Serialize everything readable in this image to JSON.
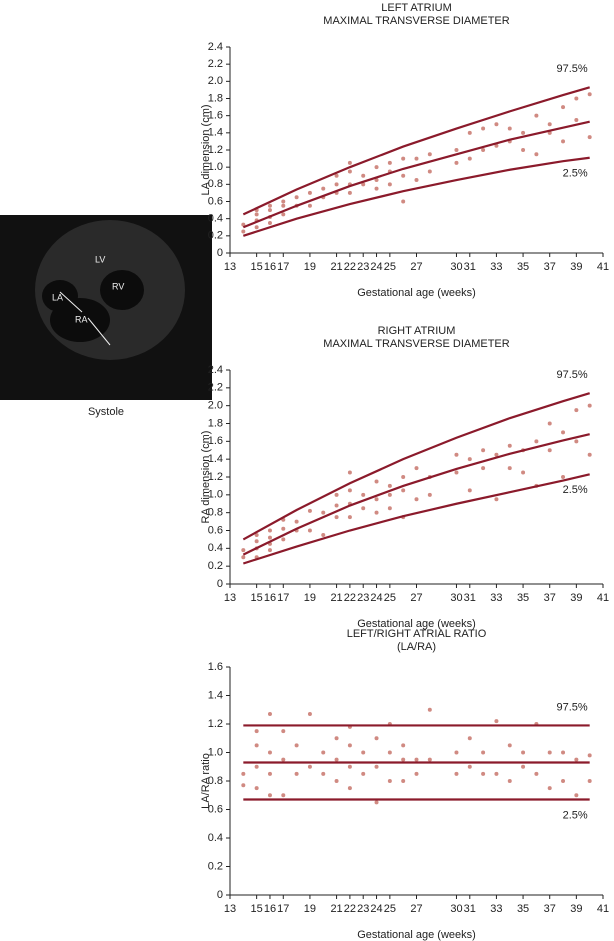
{
  "image": {
    "labels": [
      "LV",
      "RV",
      "LA",
      "RA"
    ],
    "caption": "Systole"
  },
  "chart_data": [
    {
      "type": "scatter",
      "title": "LEFT ATRIUM",
      "subtitle": "MAXIMAL TRANSVERSE DIAMETER",
      "x_label": "Gestational age (weeks)",
      "y_label": "LA dimension (cm)",
      "xlim": [
        13,
        41
      ],
      "xticks": [
        13,
        15,
        16,
        17,
        19,
        21,
        22,
        23,
        24,
        25,
        27,
        30,
        31,
        33,
        35,
        37,
        39,
        41
      ],
      "ylim": [
        0,
        2.4
      ],
      "yticks": [
        0,
        0.2,
        0.4,
        0.6,
        0.8,
        {
          "value": 1,
          "label": "1.0"
        },
        1.2,
        1.4,
        1.6,
        1.8,
        {
          "value": 2,
          "label": "2.0"
        },
        2.2,
        2.4
      ],
      "series": [
        {
          "type": "scatter",
          "color": "#d08a82",
          "x": [
            14,
            14,
            15,
            15,
            15,
            15,
            16,
            16,
            16,
            16,
            17,
            17,
            17,
            18,
            18,
            19,
            19,
            20,
            20,
            21,
            21,
            21,
            22,
            22,
            22,
            22,
            23,
            23,
            24,
            24,
            24,
            25,
            25,
            25,
            26,
            26,
            26,
            27,
            27,
            28,
            28,
            30,
            30,
            31,
            31,
            32,
            32,
            33,
            33,
            34,
            34,
            35,
            35,
            36,
            36,
            37,
            37,
            38,
            38,
            39,
            39,
            40,
            40
          ],
          "values": [
            0.25,
            0.33,
            0.3,
            0.38,
            0.45,
            0.5,
            0.35,
            0.42,
            0.5,
            0.55,
            0.45,
            0.55,
            0.6,
            0.55,
            0.65,
            0.55,
            0.7,
            0.65,
            0.75,
            0.7,
            0.8,
            0.9,
            0.7,
            0.8,
            0.95,
            1.05,
            0.8,
            0.9,
            0.75,
            0.85,
            1.0,
            0.8,
            0.95,
            1.05,
            0.6,
            0.9,
            1.1,
            0.85,
            1.1,
            0.95,
            1.15,
            1.05,
            1.2,
            1.1,
            1.4,
            1.2,
            1.45,
            1.25,
            1.5,
            1.3,
            1.45,
            1.2,
            1.4,
            1.15,
            1.6,
            1.4,
            1.5,
            1.3,
            1.7,
            1.55,
            1.8,
            1.35,
            1.85
          ]
        },
        {
          "type": "line",
          "name": "97.5%",
          "color": "#8b1a2b",
          "x": [
            14,
            18,
            22,
            26,
            30,
            34,
            38,
            40
          ],
          "values": [
            0.45,
            0.74,
            1.0,
            1.24,
            1.45,
            1.65,
            1.84,
            1.93
          ]
        },
        {
          "type": "line",
          "color": "#8b1a2b",
          "x": [
            14,
            18,
            22,
            26,
            30,
            34,
            38,
            40
          ],
          "values": [
            0.3,
            0.55,
            0.78,
            0.98,
            1.15,
            1.32,
            1.46,
            1.53
          ]
        },
        {
          "type": "line",
          "name": "2.5%",
          "color": "#8b1a2b",
          "x": [
            14,
            18,
            22,
            26,
            30,
            34,
            38,
            40
          ],
          "values": [
            0.2,
            0.4,
            0.57,
            0.72,
            0.85,
            0.97,
            1.07,
            1.11
          ]
        }
      ]
    },
    {
      "type": "scatter",
      "title": "RIGHT ATRIUM",
      "subtitle": "MAXIMAL TRANSVERSE DIAMETER",
      "x_label": "Gestational age (weeks)",
      "y_label": "RA dimension (cm)",
      "xlim": [
        13,
        41
      ],
      "xticks": [
        13,
        15,
        16,
        17,
        19,
        21,
        22,
        23,
        24,
        25,
        27,
        30,
        31,
        33,
        35,
        37,
        39,
        41
      ],
      "ylim": [
        0,
        2.4
      ],
      "yticks": [
        0,
        0.2,
        0.4,
        0.6,
        0.8,
        {
          "value": 1,
          "label": "1.0"
        },
        1.2,
        1.4,
        1.6,
        1.8,
        {
          "value": 2,
          "label": "2.0"
        },
        2.2,
        2.4
      ],
      "series": [
        {
          "type": "scatter",
          "color": "#d08a82",
          "x": [
            14,
            14,
            15,
            15,
            15,
            15,
            16,
            16,
            16,
            16,
            17,
            17,
            17,
            18,
            18,
            19,
            19,
            20,
            20,
            21,
            21,
            21,
            22,
            22,
            22,
            22,
            23,
            23,
            24,
            24,
            24,
            25,
            25,
            25,
            26,
            26,
            26,
            27,
            27,
            28,
            28,
            30,
            30,
            31,
            31,
            32,
            32,
            33,
            33,
            34,
            34,
            35,
            35,
            36,
            36,
            37,
            37,
            38,
            38,
            39,
            39,
            40,
            40
          ],
          "values": [
            0.3,
            0.38,
            0.3,
            0.4,
            0.48,
            0.55,
            0.38,
            0.45,
            0.52,
            0.6,
            0.5,
            0.62,
            0.72,
            0.6,
            0.7,
            0.6,
            0.82,
            0.55,
            0.8,
            0.75,
            0.88,
            1.0,
            0.75,
            0.9,
            1.05,
            1.25,
            0.85,
            1.0,
            0.8,
            0.95,
            1.15,
            0.85,
            1.0,
            1.1,
            0.75,
            1.05,
            1.2,
            0.95,
            1.3,
            1.0,
            1.2,
            1.25,
            1.45,
            1.05,
            1.4,
            1.3,
            1.5,
            0.95,
            1.45,
            1.3,
            1.55,
            1.25,
            1.5,
            1.1,
            1.6,
            1.5,
            1.8,
            1.2,
            1.7,
            1.6,
            1.95,
            1.45,
            2.0
          ]
        },
        {
          "type": "line",
          "name": "97.5%",
          "color": "#8b1a2b",
          "x": [
            14,
            18,
            22,
            26,
            30,
            34,
            38,
            40
          ],
          "values": [
            0.5,
            0.83,
            1.13,
            1.4,
            1.64,
            1.86,
            2.05,
            2.14
          ]
        },
        {
          "type": "line",
          "color": "#8b1a2b",
          "x": [
            14,
            18,
            22,
            26,
            30,
            34,
            38,
            40
          ],
          "values": [
            0.33,
            0.62,
            0.88,
            1.1,
            1.29,
            1.46,
            1.61,
            1.68
          ]
        },
        {
          "type": "line",
          "name": "2.5%",
          "color": "#8b1a2b",
          "x": [
            14,
            18,
            22,
            26,
            30,
            34,
            38,
            40
          ],
          "values": [
            0.23,
            0.42,
            0.6,
            0.76,
            0.9,
            1.03,
            1.16,
            1.23
          ]
        }
      ]
    },
    {
      "type": "scatter",
      "title": "LEFT/RIGHT ATRIAL RATIO",
      "subtitle": "(LA/RA)",
      "x_label": "Gestational age (weeks)",
      "y_label": "LA/RA ratio",
      "xlim": [
        13,
        41
      ],
      "xticks": [
        13,
        15,
        16,
        17,
        19,
        21,
        22,
        23,
        24,
        25,
        27,
        30,
        31,
        33,
        35,
        37,
        39,
        41
      ],
      "ylim": [
        0,
        1.6
      ],
      "yticks": [
        0,
        0.2,
        0.4,
        0.6,
        0.8,
        {
          "value": 1,
          "label": "1.0"
        },
        1.2,
        1.4,
        1.6
      ],
      "series": [
        {
          "type": "scatter",
          "color": "#d08a82",
          "x": [
            14,
            14,
            15,
            15,
            15,
            15,
            16,
            16,
            16,
            16,
            17,
            17,
            17,
            18,
            18,
            19,
            19,
            20,
            20,
            21,
            21,
            21,
            22,
            22,
            22,
            22,
            23,
            23,
            24,
            24,
            24,
            25,
            25,
            25,
            26,
            26,
            26,
            27,
            27,
            28,
            28,
            30,
            30,
            31,
            31,
            32,
            32,
            33,
            33,
            34,
            34,
            35,
            35,
            36,
            36,
            37,
            37,
            38,
            38,
            39,
            39,
            40,
            40
          ],
          "values": [
            0.77,
            0.85,
            0.75,
            0.9,
            1.05,
            1.15,
            0.7,
            0.85,
            1.0,
            1.27,
            0.7,
            0.95,
            1.15,
            0.85,
            1.05,
            0.9,
            1.27,
            0.85,
            1.0,
            0.8,
            0.95,
            1.1,
            0.75,
            0.9,
            1.05,
            1.18,
            0.85,
            1.0,
            0.65,
            0.9,
            1.1,
            0.8,
            1.0,
            1.2,
            0.8,
            0.95,
            1.05,
            0.85,
            0.95,
            0.95,
            1.3,
            0.85,
            1.0,
            0.9,
            1.1,
            0.85,
            1.0,
            0.85,
            1.22,
            0.8,
            1.05,
            0.9,
            1.0,
            0.85,
            1.2,
            0.75,
            1.0,
            0.8,
            1.0,
            0.7,
            0.95,
            0.8,
            0.98
          ]
        },
        {
          "type": "line",
          "name": "97.5%",
          "color": "#8b1a2b",
          "x": [
            14,
            40
          ],
          "values": [
            1.19,
            1.19
          ]
        },
        {
          "type": "line",
          "color": "#8b1a2b",
          "x": [
            14,
            40
          ],
          "values": [
            0.93,
            0.93
          ]
        },
        {
          "type": "line",
          "name": "2.5%",
          "color": "#8b1a2b",
          "x": [
            14,
            40
          ],
          "values": [
            0.67,
            0.67
          ]
        }
      ]
    }
  ]
}
